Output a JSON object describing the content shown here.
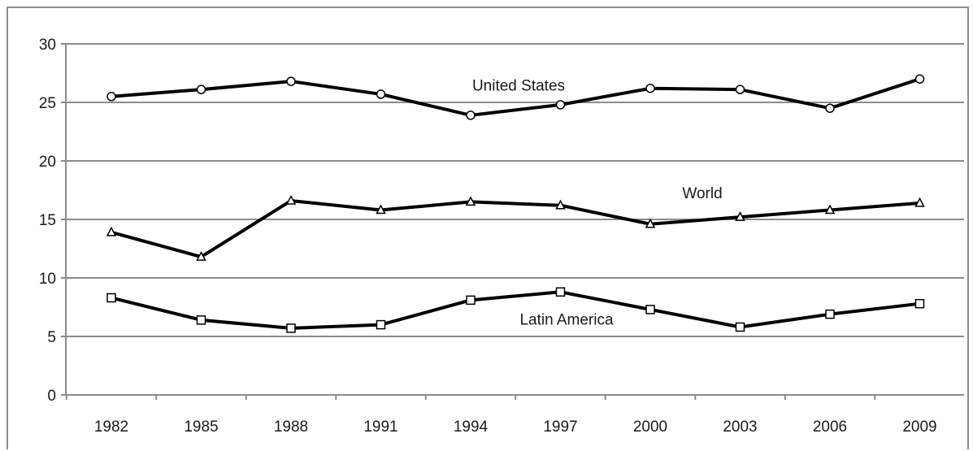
{
  "chart_data": {
    "type": "line",
    "title": "",
    "xlabel": "",
    "ylabel": "",
    "categories": [
      "1982",
      "1985",
      "1988",
      "1991",
      "1994",
      "1997",
      "2000",
      "2003",
      "2006",
      "2009"
    ],
    "ylim": [
      0,
      30
    ],
    "yticks": [
      0,
      5,
      10,
      15,
      20,
      25,
      30
    ],
    "grid": true,
    "legend": "none",
    "series": [
      {
        "name": "United States",
        "marker": "circle",
        "values": [
          25.5,
          26.1,
          26.8,
          25.7,
          23.9,
          24.8,
          26.2,
          26.1,
          24.5,
          27.0
        ]
      },
      {
        "name": "World",
        "marker": "triangle",
        "values": [
          13.9,
          11.8,
          16.6,
          15.8,
          16.5,
          16.2,
          14.6,
          15.2,
          15.8,
          16.4
        ]
      },
      {
        "name": "Latin America",
        "marker": "square",
        "values": [
          8.3,
          6.4,
          5.7,
          6.0,
          8.1,
          8.8,
          7.3,
          5.8,
          6.9,
          7.8
        ]
      }
    ],
    "colors": {
      "line": "#000000",
      "grid": "#8c8c8c",
      "marker_fill": "#ffffff"
    }
  }
}
